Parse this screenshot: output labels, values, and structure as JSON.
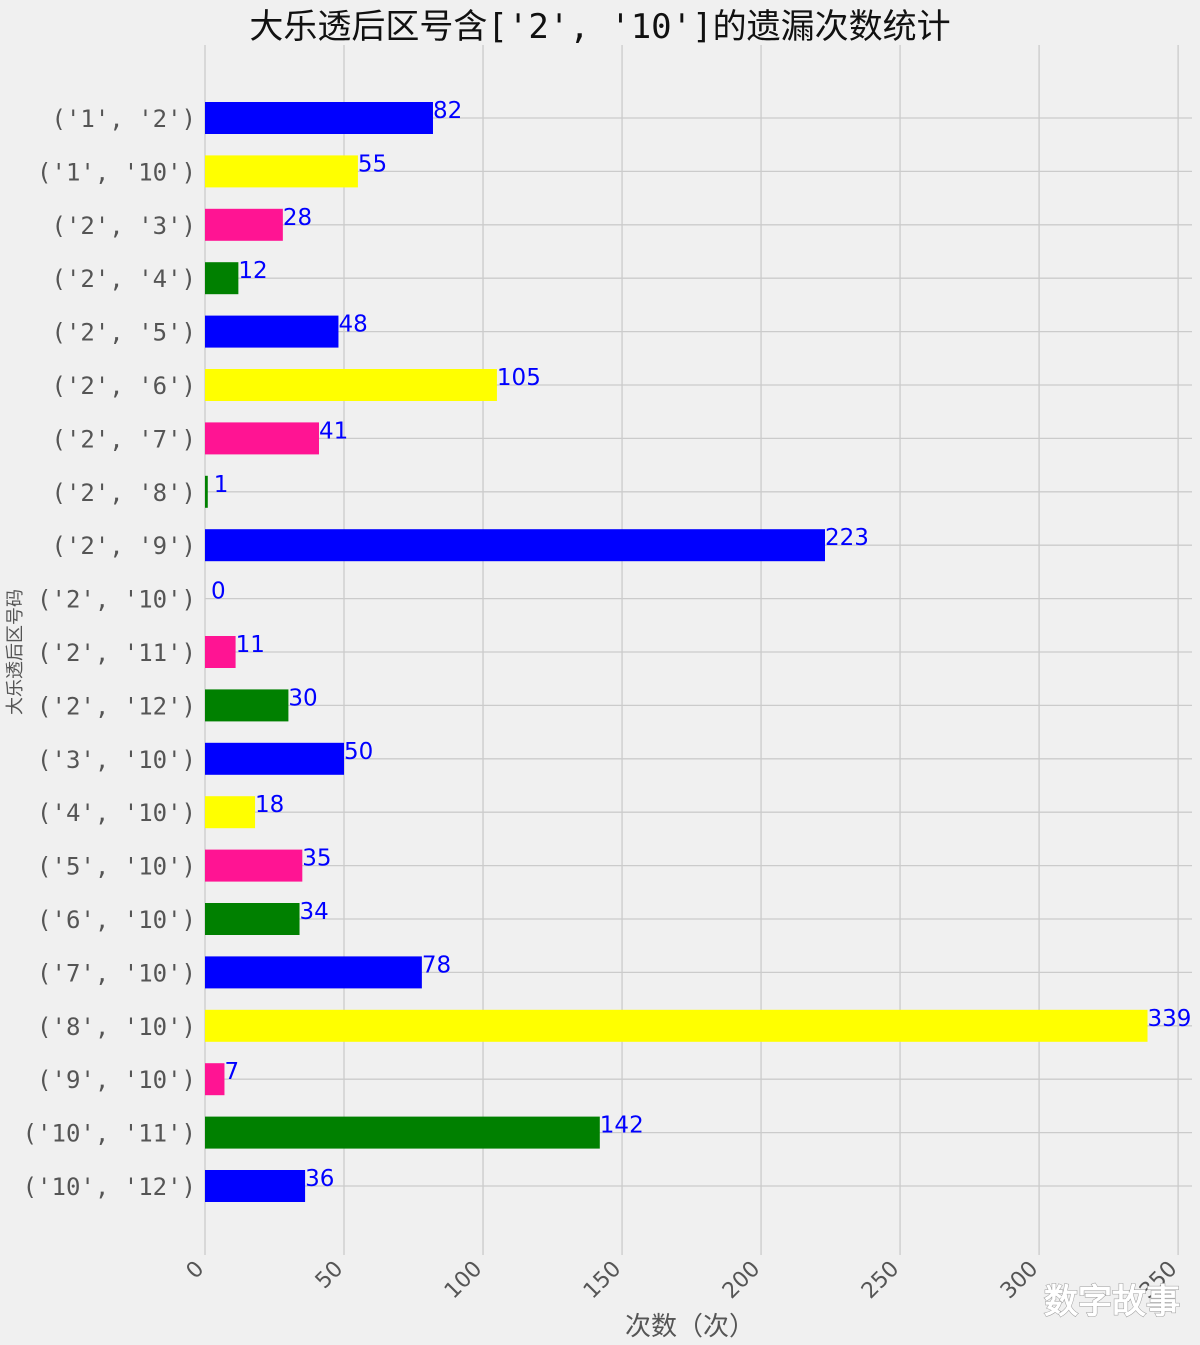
{
  "chart_data": {
    "type": "bar",
    "orientation": "horizontal",
    "title": "大乐透后区号含['2', '10']的遗漏次数统计",
    "xlabel": "次数（次）",
    "ylabel": "大乐透后区号码",
    "categories": [
      "('1', '2')",
      "('1', '10')",
      "('2', '3')",
      "('2', '4')",
      "('2', '5')",
      "('2', '6')",
      "('2', '7')",
      "('2', '8')",
      "('2', '9')",
      "('2', '10')",
      "('2', '11')",
      "('2', '12')",
      "('3', '10')",
      "('4', '10')",
      "('5', '10')",
      "('6', '10')",
      "('7', '10')",
      "('8', '10')",
      "('9', '10')",
      "('10', '11')",
      "('10', '12')"
    ],
    "values": [
      82,
      55,
      28,
      12,
      48,
      105,
      41,
      1,
      223,
      0,
      11,
      30,
      50,
      18,
      35,
      34,
      78,
      339,
      7,
      142,
      36
    ],
    "bar_colors": [
      "#0000ff",
      "#ffff00",
      "#ff1493",
      "#008000"
    ],
    "value_label_color": "#0000ff",
    "xticks": [
      0,
      50,
      100,
      150,
      200,
      250,
      300,
      350
    ],
    "xtick_labels": [
      "0",
      "50",
      "100",
      "150",
      "200",
      "250",
      "300",
      "350"
    ],
    "xlim": [
      0,
      355
    ],
    "grid": true
  },
  "watermark": "数字故事"
}
